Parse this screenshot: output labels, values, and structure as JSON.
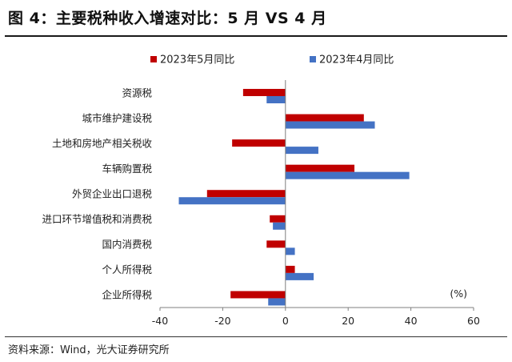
{
  "title": "图 4：主要税种收入增速对比：5 月  VS 4 月",
  "source": "资料来源：Wind，光大证券研究所",
  "chart_data": {
    "type": "bar",
    "orientation": "horizontal",
    "categories": [
      "资源税",
      "城市维护建设税",
      "土地和房地产相关税收",
      "车辆购置税",
      "外贸企业出口退税",
      "进口环节增值税和消费税",
      "国内消费税",
      "个人所得税",
      "企业所得税"
    ],
    "series": [
      {
        "name": "2023年5月同比",
        "color": "#c00000",
        "values": [
          -13.5,
          25,
          -17,
          22,
          -25,
          -5,
          -6,
          3,
          -17.5
        ]
      },
      {
        "name": "2023年4月同比",
        "color": "#4472c4",
        "values": [
          -6,
          28.5,
          10.5,
          39.5,
          -34,
          -4,
          3,
          9,
          -5.5
        ]
      }
    ],
    "xlim": [
      -40,
      60
    ],
    "xticks": [
      "-40",
      "-20",
      "0",
      "20",
      "40",
      "60"
    ],
    "unit_label": "(%)",
    "legend_position": "top",
    "grid": false
  }
}
